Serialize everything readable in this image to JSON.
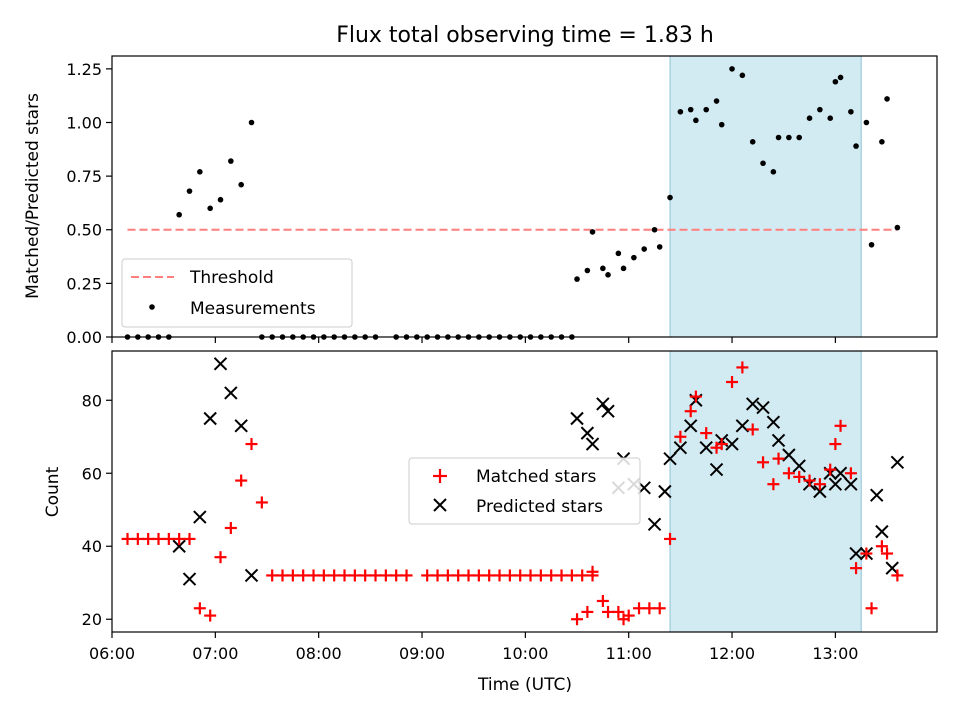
{
  "figure": {
    "title": "Flux total observing time = 1.83 h"
  },
  "chart_data": [
    {
      "type": "scatter",
      "ylabel": "Matched/Predicted stars",
      "xlabel": "",
      "xlim": [
        "06:00",
        "13:59"
      ],
      "ylim": [
        0,
        1.31
      ],
      "yticks": [
        "0.00",
        "0.25",
        "0.50",
        "0.75",
        "1.00",
        "1.25"
      ],
      "grid": false,
      "legend": {
        "placement": "bottom-left",
        "entries": [
          "Threshold",
          "Measurements"
        ]
      },
      "shaded_span": {
        "x_start": "11:24",
        "x_end": "13:15",
        "color": "#add8e6"
      },
      "threshold": {
        "name": "Threshold",
        "value": 0.5,
        "x_start": "06:09",
        "x_end": "13:36",
        "color": "#ff0000",
        "style": "dashed"
      },
      "series": [
        {
          "name": "Measurements",
          "color": "#000000",
          "points": [
            [
              "06:09",
              0
            ],
            [
              "06:15",
              0
            ],
            [
              "06:21",
              0
            ],
            [
              "06:27",
              0
            ],
            [
              "06:33",
              0
            ],
            [
              "06:39",
              0.57
            ],
            [
              "06:45",
              0.68
            ],
            [
              "06:51",
              0.77
            ],
            [
              "06:57",
              0.6
            ],
            [
              "07:03",
              0.64
            ],
            [
              "07:09",
              0.82
            ],
            [
              "07:15",
              0.71
            ],
            [
              "07:21",
              1.0
            ],
            [
              "07:27",
              0
            ],
            [
              "07:33",
              0
            ],
            [
              "07:39",
              0
            ],
            [
              "07:45",
              0
            ],
            [
              "07:51",
              0
            ],
            [
              "07:57",
              0
            ],
            [
              "08:03",
              0
            ],
            [
              "08:09",
              0
            ],
            [
              "08:15",
              0
            ],
            [
              "08:21",
              0
            ],
            [
              "08:27",
              0
            ],
            [
              "08:33",
              0
            ],
            [
              "08:45",
              0
            ],
            [
              "08:51",
              0
            ],
            [
              "08:57",
              0
            ],
            [
              "09:03",
              0
            ],
            [
              "09:09",
              0
            ],
            [
              "09:15",
              0
            ],
            [
              "09:21",
              0
            ],
            [
              "09:27",
              0
            ],
            [
              "09:33",
              0
            ],
            [
              "09:39",
              0
            ],
            [
              "09:45",
              0
            ],
            [
              "09:51",
              0
            ],
            [
              "09:57",
              0
            ],
            [
              "10:03",
              0
            ],
            [
              "10:09",
              0
            ],
            [
              "10:15",
              0
            ],
            [
              "10:21",
              0
            ],
            [
              "10:27",
              0
            ],
            [
              "10:30",
              0.27
            ],
            [
              "10:36",
              0.31
            ],
            [
              "10:39",
              0.49
            ],
            [
              "10:45",
              0.32
            ],
            [
              "10:48",
              0.29
            ],
            [
              "10:54",
              0.39
            ],
            [
              "10:57",
              0.32
            ],
            [
              "11:03",
              0.37
            ],
            [
              "11:09",
              0.41
            ],
            [
              "11:15",
              0.5
            ],
            [
              "11:18",
              0.42
            ],
            [
              "11:24",
              0.65
            ],
            [
              "11:30",
              1.05
            ],
            [
              "11:36",
              1.06
            ],
            [
              "11:39",
              1.01
            ],
            [
              "11:45",
              1.06
            ],
            [
              "11:51",
              1.1
            ],
            [
              "11:54",
              0.99
            ],
            [
              "12:00",
              1.25
            ],
            [
              "12:06",
              1.22
            ],
            [
              "12:12",
              0.91
            ],
            [
              "12:18",
              0.81
            ],
            [
              "12:24",
              0.77
            ],
            [
              "12:27",
              0.93
            ],
            [
              "12:33",
              0.93
            ],
            [
              "12:39",
              0.93
            ],
            [
              "12:45",
              1.02
            ],
            [
              "12:51",
              1.06
            ],
            [
              "12:57",
              1.02
            ],
            [
              "13:00",
              1.19
            ],
            [
              "13:03",
              1.21
            ],
            [
              "13:09",
              1.05
            ],
            [
              "13:12",
              0.89
            ],
            [
              "13:18",
              1.0
            ],
            [
              "13:21",
              0.43
            ],
            [
              "13:27",
              0.91
            ],
            [
              "13:30",
              1.11
            ],
            [
              "13:36",
              0.51
            ]
          ]
        }
      ]
    },
    {
      "type": "scatter",
      "ylabel": "Count",
      "xlabel": "Time (UTC)",
      "xlim": [
        "06:00",
        "13:59"
      ],
      "ylim": [
        16.5,
        93.5
      ],
      "xticks": [
        "06:00",
        "07:00",
        "08:00",
        "09:00",
        "10:00",
        "11:00",
        "12:00",
        "13:00"
      ],
      "yticks": [
        "20",
        "40",
        "60",
        "80"
      ],
      "grid": false,
      "legend": {
        "placement": "center",
        "entries": [
          "Matched stars",
          "Predicted stars"
        ]
      },
      "shaded_span": {
        "x_start": "11:24",
        "x_end": "13:15",
        "color": "#add8e6"
      },
      "series": [
        {
          "name": "Matched stars",
          "marker": "+",
          "color": "#ff0000",
          "points": [
            [
              "06:09",
              42
            ],
            [
              "06:15",
              42
            ],
            [
              "06:21",
              42
            ],
            [
              "06:27",
              42
            ],
            [
              "06:33",
              42
            ],
            [
              "06:39",
              42
            ],
            [
              "06:45",
              42
            ],
            [
              "06:51",
              23
            ],
            [
              "06:57",
              21
            ],
            [
              "07:03",
              37
            ],
            [
              "07:09",
              45
            ],
            [
              "07:15",
              58
            ],
            [
              "07:21",
              68
            ],
            [
              "07:27",
              52
            ],
            [
              "07:33",
              32
            ],
            [
              "07:39",
              32
            ],
            [
              "07:45",
              32
            ],
            [
              "07:51",
              32
            ],
            [
              "07:57",
              32
            ],
            [
              "08:03",
              32
            ],
            [
              "08:09",
              32
            ],
            [
              "08:15",
              32
            ],
            [
              "08:21",
              32
            ],
            [
              "08:27",
              32
            ],
            [
              "08:33",
              32
            ],
            [
              "08:39",
              32
            ],
            [
              "08:45",
              32
            ],
            [
              "08:51",
              32
            ],
            [
              "09:03",
              32
            ],
            [
              "09:09",
              32
            ],
            [
              "09:15",
              32
            ],
            [
              "09:21",
              32
            ],
            [
              "09:27",
              32
            ],
            [
              "09:33",
              32
            ],
            [
              "09:39",
              32
            ],
            [
              "09:45",
              32
            ],
            [
              "09:51",
              32
            ],
            [
              "09:57",
              32
            ],
            [
              "10:03",
              32
            ],
            [
              "10:09",
              32
            ],
            [
              "10:15",
              32
            ],
            [
              "10:21",
              32
            ],
            [
              "10:27",
              32
            ],
            [
              "10:33",
              32
            ],
            [
              "10:39",
              32
            ],
            [
              "10:30",
              20
            ],
            [
              "10:36",
              22
            ],
            [
              "10:39",
              33
            ],
            [
              "10:45",
              25
            ],
            [
              "10:48",
              22
            ],
            [
              "10:54",
              22
            ],
            [
              "10:57",
              20
            ],
            [
              "11:00",
              21
            ],
            [
              "11:06",
              23
            ],
            [
              "11:12",
              23
            ],
            [
              "11:18",
              23
            ],
            [
              "11:24",
              42
            ],
            [
              "11:30",
              70
            ],
            [
              "11:36",
              77
            ],
            [
              "11:39",
              81
            ],
            [
              "11:45",
              71
            ],
            [
              "11:51",
              67
            ],
            [
              "11:54",
              68
            ],
            [
              "12:00",
              85
            ],
            [
              "12:06",
              89
            ],
            [
              "12:12",
              72
            ],
            [
              "12:18",
              63
            ],
            [
              "12:24",
              57
            ],
            [
              "12:27",
              64
            ],
            [
              "12:33",
              60
            ],
            [
              "12:39",
              59
            ],
            [
              "12:45",
              58
            ],
            [
              "12:51",
              57
            ],
            [
              "12:57",
              61
            ],
            [
              "13:00",
              68
            ],
            [
              "13:03",
              73
            ],
            [
              "13:09",
              60
            ],
            [
              "13:12",
              34
            ],
            [
              "13:18",
              38
            ],
            [
              "13:21",
              23
            ],
            [
              "13:27",
              40
            ],
            [
              "13:30",
              38
            ],
            [
              "13:36",
              32
            ]
          ]
        },
        {
          "name": "Predicted stars",
          "marker": "x",
          "color": "#000000",
          "points": [
            [
              "06:39",
              40
            ],
            [
              "06:45",
              31
            ],
            [
              "06:51",
              48
            ],
            [
              "06:57",
              75
            ],
            [
              "07:03",
              90
            ],
            [
              "07:09",
              82
            ],
            [
              "07:15",
              73
            ],
            [
              "07:21",
              32
            ],
            [
              "10:30",
              75
            ],
            [
              "10:36",
              71
            ],
            [
              "10:39",
              68
            ],
            [
              "10:45",
              79
            ],
            [
              "10:48",
              77
            ],
            [
              "10:54",
              56
            ],
            [
              "10:57",
              64
            ],
            [
              "11:03",
              57
            ],
            [
              "11:09",
              56
            ],
            [
              "11:15",
              46
            ],
            [
              "11:21",
              55
            ],
            [
              "11:24",
              64
            ],
            [
              "11:30",
              67
            ],
            [
              "11:36",
              73
            ],
            [
              "11:39",
              80
            ],
            [
              "11:45",
              67
            ],
            [
              "11:51",
              61
            ],
            [
              "11:54",
              69
            ],
            [
              "12:00",
              68
            ],
            [
              "12:06",
              73
            ],
            [
              "12:12",
              79
            ],
            [
              "12:18",
              78
            ],
            [
              "12:24",
              74
            ],
            [
              "12:27",
              69
            ],
            [
              "12:33",
              65
            ],
            [
              "12:39",
              62
            ],
            [
              "12:45",
              57
            ],
            [
              "12:51",
              55
            ],
            [
              "12:57",
              60
            ],
            [
              "13:00",
              57
            ],
            [
              "13:03",
              60
            ],
            [
              "13:09",
              57
            ],
            [
              "13:12",
              38
            ],
            [
              "13:18",
              38
            ],
            [
              "13:24",
              54
            ],
            [
              "13:27",
              44
            ],
            [
              "13:33",
              34
            ],
            [
              "13:36",
              63
            ]
          ]
        }
      ]
    }
  ]
}
